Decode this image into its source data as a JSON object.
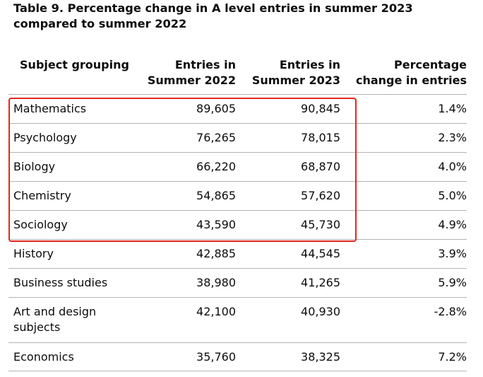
{
  "caption": "Table 9. Percentage change in A level entries in summer 2023 compared to summer 2022",
  "headers": {
    "subject": "Subject grouping",
    "entries_2022": "Entries in Summer 2022",
    "entries_2023": "Entries in Summer 2023",
    "pct_change": "Percentage change in entries"
  },
  "rows": [
    {
      "subject": "Mathematics",
      "entries_2022": "89,605",
      "entries_2023": "90,845",
      "pct_change": "1.4%"
    },
    {
      "subject": "Psychology",
      "entries_2022": "76,265",
      "entries_2023": "78,015",
      "pct_change": "2.3%"
    },
    {
      "subject": "Biology",
      "entries_2022": "66,220",
      "entries_2023": "68,870",
      "pct_change": "4.0%"
    },
    {
      "subject": "Chemistry",
      "entries_2022": "54,865",
      "entries_2023": "57,620",
      "pct_change": "5.0%"
    },
    {
      "subject": "Sociology",
      "entries_2022": "43,590",
      "entries_2023": "45,730",
      "pct_change": "4.9%"
    },
    {
      "subject": "History",
      "entries_2022": "42,885",
      "entries_2023": "44,545",
      "pct_change": "3.9%"
    },
    {
      "subject": "Business studies",
      "entries_2022": "38,980",
      "entries_2023": "41,265",
      "pct_change": "5.9%"
    },
    {
      "subject": "Art and design subjects",
      "entries_2022": "42,100",
      "entries_2023": "40,930",
      "pct_change": "-2.8%"
    },
    {
      "subject": "Economics",
      "entries_2022": "35,760",
      "entries_2023": "38,325",
      "pct_change": "7.2%"
    }
  ],
  "highlight": {
    "color": "#e0281e",
    "rows_covered": [
      "Mathematics",
      "Psychology",
      "Biology",
      "Chemistry",
      "Sociology"
    ],
    "columns_covered": [
      "Subject grouping",
      "Entries in Summer 2022",
      "Entries in Summer 2023"
    ]
  }
}
